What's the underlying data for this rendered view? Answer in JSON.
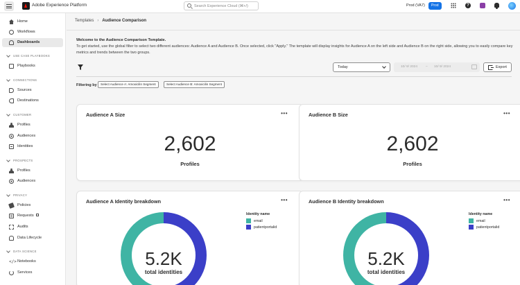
{
  "header": {
    "app_title": "Adobe Experience Platform",
    "search_placeholder": "Search Experience Cloud (⌘+/)",
    "sandbox": "Prod (VA7)",
    "env_badge": "Prod"
  },
  "sidebar": {
    "top_items": [
      {
        "label": "Home",
        "icon": "home-icon"
      },
      {
        "label": "Workflows",
        "icon": "workflows-icon"
      },
      {
        "label": "Dashboards",
        "icon": "dashboards-icon",
        "active": true
      }
    ],
    "sections": [
      {
        "title": "USE CASE PLAYBOOKS",
        "items": [
          {
            "label": "Playbooks",
            "icon": "playbooks-icon"
          }
        ]
      },
      {
        "title": "CONNECTIONS",
        "items": [
          {
            "label": "Sources",
            "icon": "sources-icon"
          },
          {
            "label": "Destinations",
            "icon": "destinations-icon"
          }
        ]
      },
      {
        "title": "CUSTOMER",
        "items": [
          {
            "label": "Profiles",
            "icon": "profiles-icon"
          },
          {
            "label": "Audiences",
            "icon": "audiences-icon"
          },
          {
            "label": "Identities",
            "icon": "identities-icon"
          }
        ]
      },
      {
        "title": "PROSPECTS",
        "items": [
          {
            "label": "Profiles",
            "icon": "profiles-icon"
          },
          {
            "label": "Audiences",
            "icon": "audiences-icon"
          }
        ]
      },
      {
        "title": "PRIVACY",
        "items": [
          {
            "label": "Policies",
            "icon": "policies-icon"
          },
          {
            "label": "Requests",
            "icon": "requests-icon",
            "external": true
          },
          {
            "label": "Audits",
            "icon": "audits-icon"
          },
          {
            "label": "Data Lifecycle",
            "icon": "data-lifecycle-icon"
          }
        ]
      },
      {
        "title": "DATA SCIENCE",
        "items": [
          {
            "label": "Notebooks",
            "icon": "notebooks-icon"
          },
          {
            "label": "Services",
            "icon": "services-icon"
          }
        ]
      }
    ]
  },
  "breadcrumb": {
    "parent": "Templates",
    "current": "Audience Comparison"
  },
  "intro": {
    "title": "Welcome to the Audience Comparison Template.",
    "body": "To get started, use the global filter to select two different audiences: Audience A and Audience B. Once selected, click \"Apply.\" The template will display insights for Audience A on the left side and Audience B on the right side, allowing you to easily compare key metrics and trends between the two groups."
  },
  "toolbar": {
    "date_preset": "Today",
    "date_start": "10/ 9/ 2024",
    "date_sep": "–",
    "date_end": "10/ 9/ 2024",
    "export_label": "Export"
  },
  "filters": {
    "label": "Filtering by",
    "chip_a": "Select Audience A: Amoxicilin Segment",
    "chip_b": "Select Audience B: Amoxicilin Segment"
  },
  "cards": {
    "size_a": {
      "title": "Audience A Size",
      "more": "•••",
      "value": "2,602",
      "label": "Profiles"
    },
    "size_b": {
      "title": "Audience B Size",
      "more": "•••",
      "value": "2,602",
      "label": "Profiles"
    },
    "identity_a": {
      "title": "Audience A Identity breakdown",
      "more": "•••",
      "value": "5.2K",
      "label": "total identities"
    },
    "identity_b": {
      "title": "Audience B Identity breakdown",
      "more": "•••",
      "value": "5.2K",
      "label": "total identities"
    }
  },
  "legend": {
    "title": "Identity name",
    "items": [
      {
        "label": "email",
        "color": "#3fb4a4"
      },
      {
        "label": "patientportalid",
        "color": "#3b3fc8"
      }
    ]
  },
  "identity_share": {
    "email": 0.5,
    "patientportalid": 0.5
  },
  "colors": {
    "accent": "#1473e6",
    "email": "#3fb4a4",
    "patientportalid": "#3b3fc8"
  }
}
